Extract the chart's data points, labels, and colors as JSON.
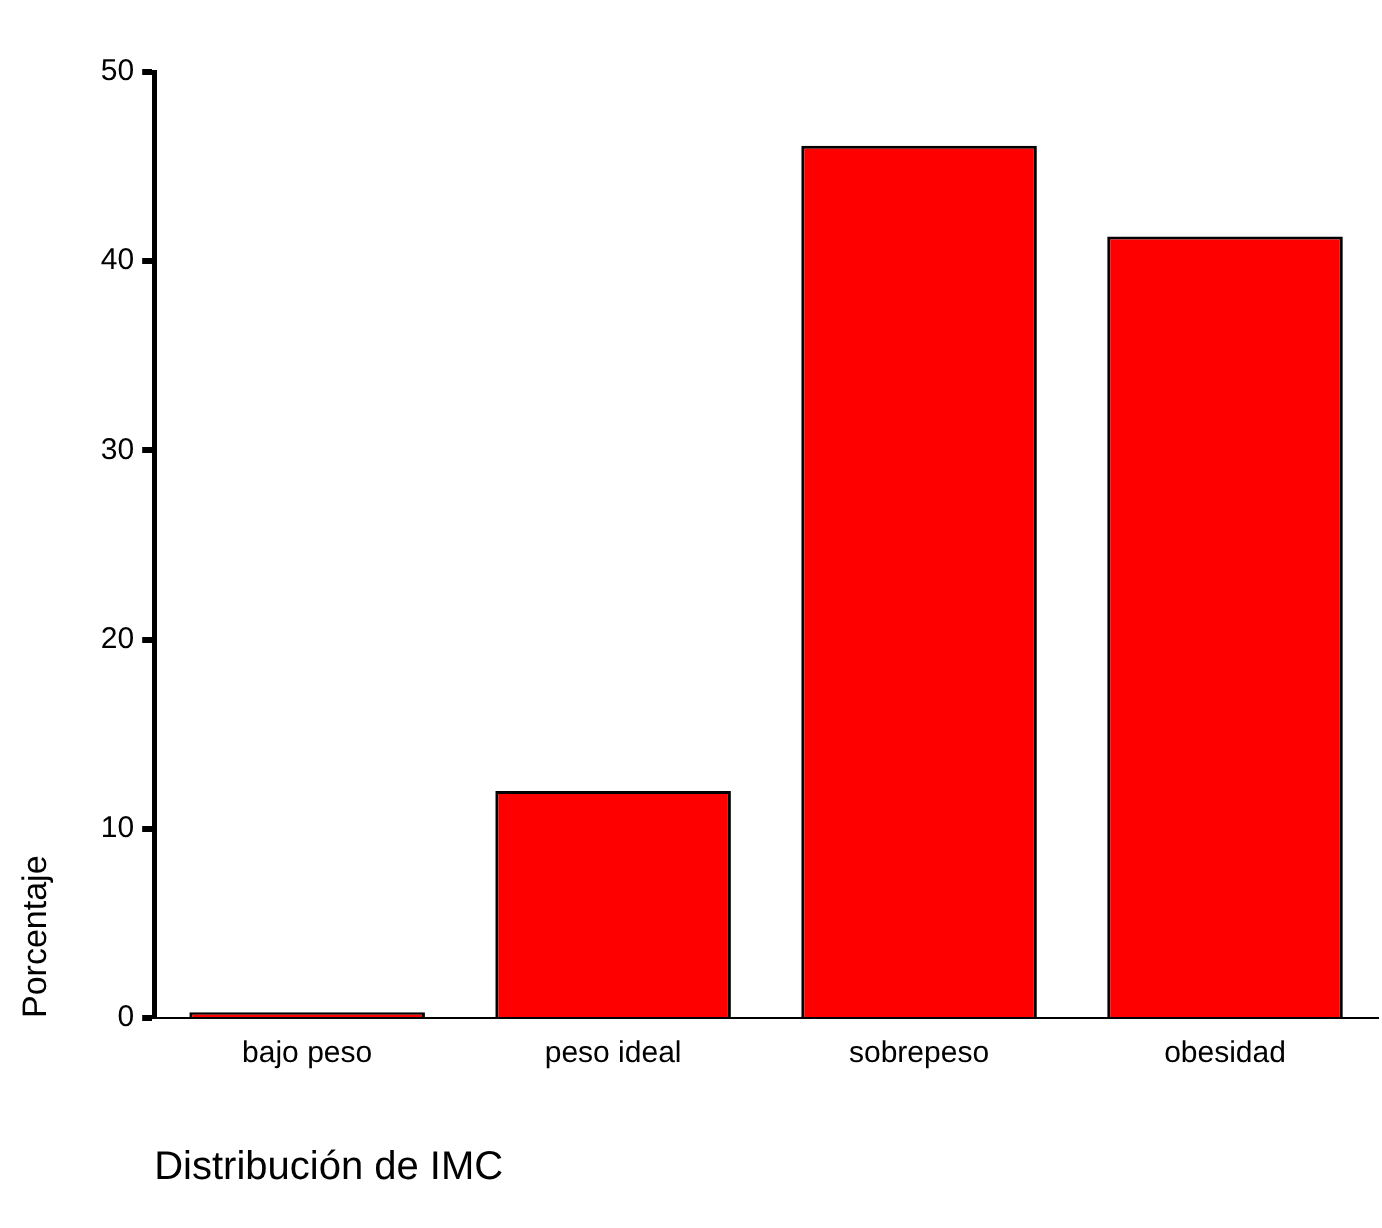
{
  "chart_data": {
    "type": "bar",
    "xlabel": "Distribución de IMC",
    "ylabel": "Porcentaje",
    "categories": [
      "bajo peso",
      "peso ideal",
      "sobrepeso",
      "obesidad"
    ],
    "values": [
      0.3,
      12.0,
      46.1,
      41.3
    ],
    "color": "#ff0000",
    "ylim": [
      0,
      50
    ],
    "yticks": [
      0,
      10,
      20,
      30,
      40,
      50
    ],
    "grid": false,
    "legend": false
  }
}
